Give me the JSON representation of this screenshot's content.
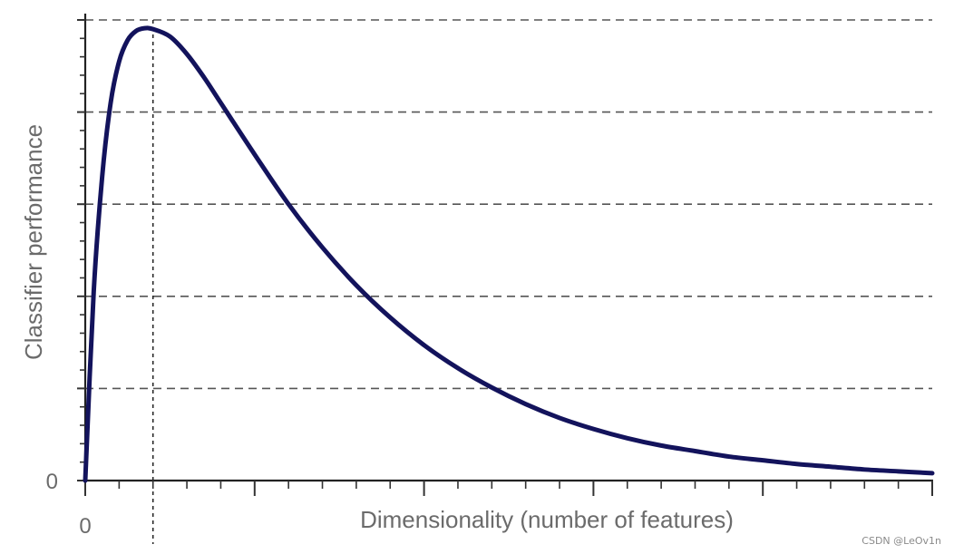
{
  "chart_data": {
    "type": "line",
    "title": "",
    "xlabel": "Dimensionality (number of features)",
    "ylabel": "Classifier performance",
    "x_tick_labels": [
      {
        "x": 0,
        "label": "0"
      }
    ],
    "y_tick_labels": [
      {
        "y": 0,
        "label": "0"
      }
    ],
    "xlim": [
      0,
      25
    ],
    "ylim": [
      0,
      5
    ],
    "optimal_dimensionality": 2,
    "grid": "horizontal dashed",
    "series": [
      {
        "color": "#13135c",
        "x": [
          0,
          0.25,
          0.5,
          0.75,
          1,
          1.25,
          1.5,
          1.75,
          2,
          2.5,
          3,
          3.5,
          4,
          5,
          6,
          7,
          8,
          9,
          10,
          11,
          12,
          13,
          14,
          15,
          16,
          17,
          18,
          19,
          20,
          21,
          22,
          23,
          24,
          25
        ],
        "y": [
          0,
          2.05,
          3.3,
          4.1,
          4.55,
          4.78,
          4.88,
          4.91,
          4.9,
          4.82,
          4.63,
          4.38,
          4.1,
          3.54,
          3.0,
          2.53,
          2.12,
          1.77,
          1.47,
          1.22,
          1.01,
          0.83,
          0.68,
          0.56,
          0.46,
          0.38,
          0.32,
          0.26,
          0.22,
          0.18,
          0.15,
          0.12,
          0.1,
          0.08
        ]
      }
    ]
  },
  "watermark": "CSDN @LeOv1n"
}
